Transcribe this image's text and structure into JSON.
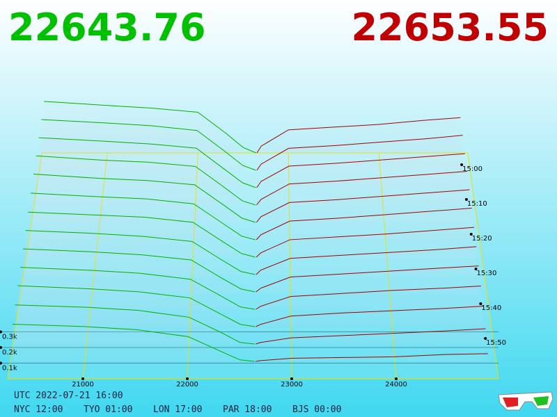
{
  "chart_data": {
    "type": "depth3d",
    "bid_price": "22643.76",
    "ask_price": "22653.55",
    "bid_color": "#00b000",
    "ask_color": "#a00000",
    "xlim": [
      20280,
      24980
    ],
    "xticks": [
      21000,
      22000,
      23000,
      24000
    ],
    "ylim": [
      0,
      400
    ],
    "yticks": [
      {
        "value": 100,
        "label": "0.1k"
      },
      {
        "value": 200,
        "label": "0.2k"
      },
      {
        "value": 300,
        "label": "0.3k"
      }
    ],
    "zlim": [
      895,
      960
    ],
    "zticks": [
      {
        "value": 900,
        "label": "15:00"
      },
      {
        "value": 910,
        "label": "15:10"
      },
      {
        "value": 920,
        "label": "15:20"
      },
      {
        "value": 930,
        "label": "15:30"
      },
      {
        "value": 940,
        "label": "15:40"
      },
      {
        "value": 950,
        "label": "15:50"
      }
    ],
    "bid_prices": [
      20300,
      21000,
      21500,
      22000,
      22300,
      22500,
      22643
    ],
    "ask_prices": [
      22653,
      22700,
      23000,
      23500,
      24000,
      24500,
      24900
    ],
    "snapshots": [
      {
        "t": 895,
        "bids": [
          380,
          350,
          330,
          300,
          150,
          40,
          0
        ],
        "asks": [
          0,
          50,
          170,
          190,
          210,
          240,
          260
        ]
      },
      {
        "t": 900,
        "bids": [
          370,
          345,
          325,
          290,
          140,
          35,
          0
        ],
        "asks": [
          0,
          45,
          160,
          180,
          205,
          230,
          255
        ]
      },
      {
        "t": 905,
        "bids": [
          360,
          335,
          315,
          285,
          135,
          35,
          0
        ],
        "asks": [
          0,
          45,
          155,
          175,
          200,
          225,
          245
        ]
      },
      {
        "t": 910,
        "bids": [
          350,
          320,
          305,
          275,
          130,
          30,
          0
        ],
        "asks": [
          0,
          40,
          150,
          170,
          195,
          220,
          240
        ]
      },
      {
        "t": 915,
        "bids": [
          340,
          310,
          295,
          265,
          125,
          30,
          0
        ],
        "asks": [
          0,
          40,
          140,
          160,
          185,
          210,
          230
        ]
      },
      {
        "t": 920,
        "bids": [
          325,
          300,
          285,
          250,
          115,
          25,
          0
        ],
        "asks": [
          0,
          35,
          130,
          150,
          175,
          200,
          220
        ]
      },
      {
        "t": 925,
        "bids": [
          310,
          290,
          275,
          240,
          110,
          25,
          0
        ],
        "asks": [
          0,
          30,
          120,
          140,
          160,
          185,
          205
        ]
      },
      {
        "t": 930,
        "bids": [
          300,
          280,
          260,
          225,
          100,
          20,
          0
        ],
        "asks": [
          0,
          30,
          110,
          130,
          150,
          170,
          190
        ]
      },
      {
        "t": 935,
        "bids": [
          290,
          270,
          250,
          215,
          95,
          20,
          0
        ],
        "asks": [
          0,
          25,
          100,
          120,
          140,
          160,
          175
        ]
      },
      {
        "t": 940,
        "bids": [
          280,
          260,
          240,
          200,
          90,
          15,
          0
        ],
        "asks": [
          0,
          20,
          85,
          105,
          125,
          140,
          155
        ]
      },
      {
        "t": 945,
        "bids": [
          270,
          250,
          230,
          190,
          85,
          15,
          0
        ],
        "asks": [
          0,
          15,
          70,
          90,
          105,
          120,
          135
        ]
      },
      {
        "t": 950,
        "bids": [
          255,
          240,
          220,
          175,
          80,
          10,
          0
        ],
        "asks": [
          0,
          10,
          40,
          55,
          70,
          85,
          100
        ]
      },
      {
        "t": 955,
        "bids": [
          240,
          225,
          205,
          160,
          70,
          10,
          0
        ],
        "asks": [
          0,
          5,
          20,
          25,
          30,
          45,
          50
        ]
      }
    ],
    "footer": {
      "utc": "UTC 2022-07-21 16:00",
      "zones": [
        "NYC 12:00",
        "TYO 01:00",
        "LON 17:00",
        "PAR 18:00",
        "BJS 00:00"
      ]
    }
  }
}
